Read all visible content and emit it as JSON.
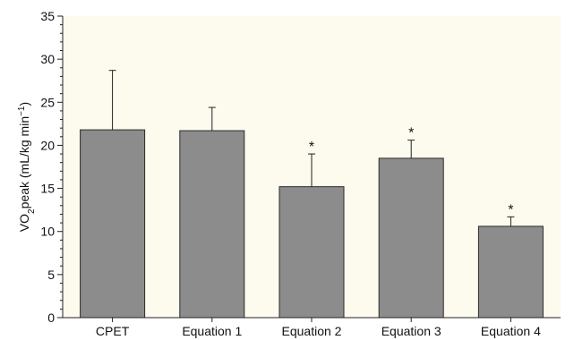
{
  "chart_data": {
    "type": "bar",
    "categories": [
      "CPET",
      "Equation 1",
      "Equation 2",
      "Equation 3",
      "Equation 4"
    ],
    "values": [
      21.8,
      21.7,
      15.2,
      18.5,
      10.6
    ],
    "error_upper": [
      28.7,
      24.4,
      19.0,
      20.6,
      11.7
    ],
    "significance": [
      "",
      "",
      "*",
      "*",
      "*"
    ],
    "ylabel": {
      "prefix": "VO",
      "sub": "2",
      "mid": "peak (mL/kg min",
      "sup": "−1",
      "suffix": ")"
    },
    "ylim": [
      0,
      35
    ],
    "yticks": [
      0,
      5,
      10,
      15,
      20,
      25,
      30,
      35
    ],
    "plot_background": "#fdfbee",
    "bar_color": "#8c8c8c",
    "grid": false
  }
}
